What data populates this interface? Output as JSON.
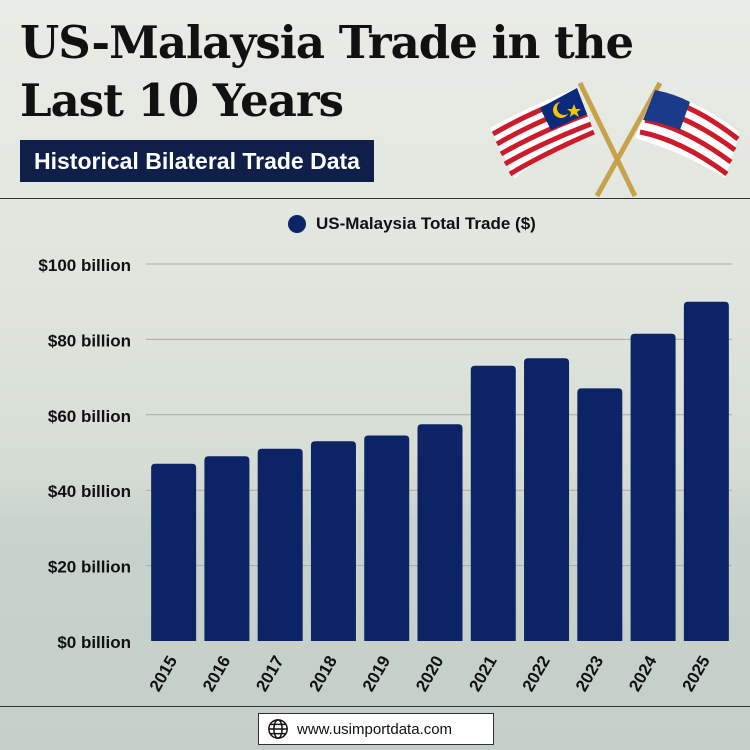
{
  "header": {
    "title_line1": "US-Malaysia Trade in the",
    "title_line2": "Last 10 Years",
    "subtitle": "Historical Bilateral Trade Data"
  },
  "footer": {
    "url": "www.usimportdata.com",
    "icon": "globe-icon"
  },
  "colors": {
    "bar": "#0c2466",
    "subtitle_bg": "#0f1f4a"
  },
  "chart_data": {
    "type": "bar",
    "title": "US-Malaysia Trade in the Last 10 Years",
    "legend": "US-Malaysia Total Trade ($)",
    "legend_position": "top-center",
    "categories": [
      "2015",
      "2016",
      "2017",
      "2018",
      "2019",
      "2020",
      "2021",
      "2022",
      "2023",
      "2024",
      "2025"
    ],
    "values": [
      47,
      49,
      51,
      53,
      54.5,
      57.5,
      73,
      75,
      67,
      81.5,
      90
    ],
    "unit": "billion USD",
    "yticks": [
      0,
      20,
      40,
      60,
      80,
      100
    ],
    "ytick_labels": [
      "$0 billion",
      "$20 billion",
      "$40 billion",
      "$60 billion",
      "$80 billion",
      "$100 billion"
    ],
    "ylim": [
      0,
      100
    ],
    "grid": true,
    "xlabel": "",
    "ylabel": ""
  }
}
